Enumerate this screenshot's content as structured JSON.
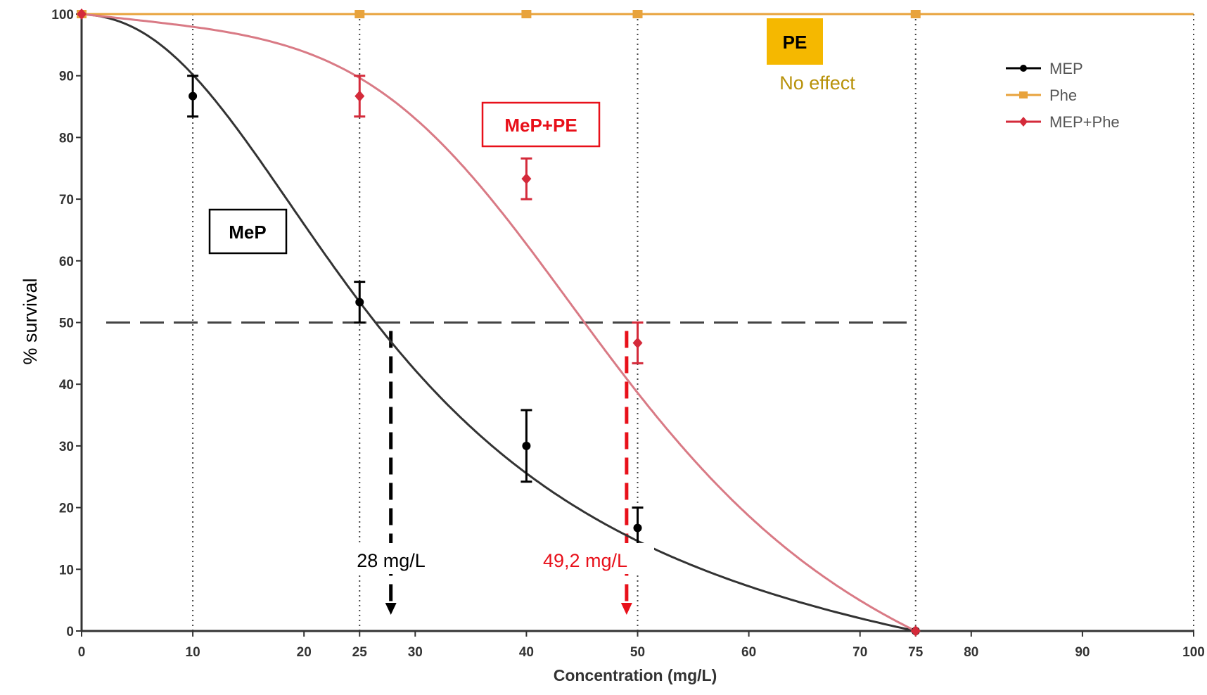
{
  "chart_data": {
    "type": "line",
    "title": "",
    "xlabel": "Concentration (mg/L)",
    "ylabel": "% survival",
    "xlim": [
      0,
      100
    ],
    "ylim": [
      0,
      100
    ],
    "x_ticks": [
      0,
      10,
      20,
      25,
      30,
      40,
      50,
      60,
      70,
      75,
      80,
      90,
      100
    ],
    "y_ticks": [
      0,
      10,
      20,
      30,
      40,
      50,
      60,
      70,
      80,
      90,
      100
    ],
    "vertical_gridlines": [
      10,
      25,
      50,
      75
    ],
    "reference_line_y": 50,
    "legend_position": "top-right",
    "series": [
      {
        "name": "MEP",
        "color": "#000000",
        "curve_color": "#333333",
        "marker": "circle",
        "points": [
          {
            "x": 0,
            "y": 100,
            "err": 0
          },
          {
            "x": 10,
            "y": 86.7,
            "err": 3.3
          },
          {
            "x": 25,
            "y": 53.3,
            "err": 3.3
          },
          {
            "x": 40,
            "y": 30,
            "err": 5.8
          },
          {
            "x": 50,
            "y": 16.7,
            "err": 3.3
          },
          {
            "x": 75,
            "y": 0,
            "err": 0
          }
        ],
        "fit_ic50": 28,
        "fit_hill": 2.3
      },
      {
        "name": "Phe",
        "color": "#e8a33c",
        "curve_color": "#e8a33c",
        "marker": "square",
        "points": [
          {
            "x": 0,
            "y": 100,
            "err": 0
          },
          {
            "x": 25,
            "y": 100,
            "err": 0
          },
          {
            "x": 40,
            "y": 100,
            "err": 0
          },
          {
            "x": 50,
            "y": 100,
            "err": 0
          },
          {
            "x": 75,
            "y": 100,
            "err": 0
          }
        ]
      },
      {
        "name": "MEP+Phe",
        "color": "#d42a3a",
        "curve_color": "#d97a85",
        "marker": "diamond",
        "points": [
          {
            "x": 0,
            "y": 100,
            "err": 0
          },
          {
            "x": 25,
            "y": 86.7,
            "err": 3.3
          },
          {
            "x": 40,
            "y": 73.3,
            "err": 3.3
          },
          {
            "x": 50,
            "y": 46.7,
            "err": 3.3
          },
          {
            "x": 75,
            "y": 0,
            "err": 0
          }
        ],
        "fit_ic50": 49.2,
        "fit_hill": 4.2
      }
    ],
    "annotations": {
      "pe_box": {
        "text": "PE",
        "subtext": "No effect",
        "fill": "#f5b800",
        "subtext_color": "#b8920a"
      },
      "mepe_box": {
        "text": "MeP+PE",
        "color": "#e8101a"
      },
      "mep_box": {
        "text": "MeP",
        "color": "#000000"
      },
      "ic50_mep": {
        "text": "28 mg/L",
        "value": 28,
        "color": "#000000"
      },
      "ic50_mix": {
        "text": "49,2 mg/L",
        "value": 49.2,
        "color": "#e8101a"
      }
    }
  }
}
